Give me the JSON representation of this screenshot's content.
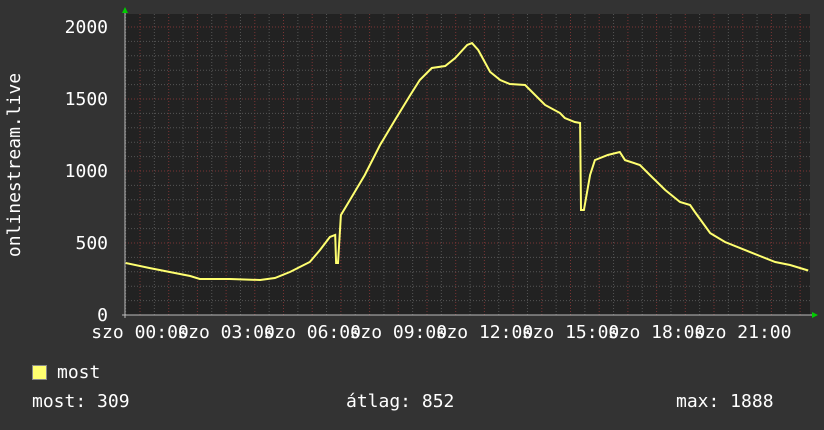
{
  "chart_data": {
    "type": "line",
    "ylabel": "onlinestream.live",
    "ylim": [
      0,
      2000
    ],
    "yticks": [
      "0",
      "500",
      "1000",
      "1500",
      "2000"
    ],
    "xticks": [
      "szo 00:00",
      "szo 03:00",
      "szo 06:00",
      "szo 09:00",
      "szo 12:00",
      "szo 15:00",
      "szo 18:00",
      "szo 21:00"
    ],
    "xlim": [
      "23:28",
      "23:52"
    ],
    "grid": true,
    "colors": {
      "background": "#333333",
      "plot": "#222222",
      "line": "#ffff70",
      "minor_grid": "#555555",
      "major_grid": "#7a3434",
      "arrows": "#00cc00"
    },
    "series": [
      {
        "name": "most",
        "x": [
          "23:30",
          "00:21",
          "01:13",
          "01:45",
          "02:05",
          "03:08",
          "04:11",
          "04:42",
          "05:14",
          "05:34",
          "05:55",
          "06:16",
          "06:37",
          "06:48",
          "06:50",
          "06:54",
          "07:00",
          "07:19",
          "07:50",
          "08:22",
          "08:53",
          "09:25",
          "09:45",
          "10:10",
          "10:38",
          "10:59",
          "11:24",
          "11:34",
          "11:47",
          "12:12",
          "12:33",
          "12:53",
          "13:25",
          "13:46",
          "14:07",
          "14:38",
          "14:48",
          "15:09",
          "15:20",
          "15:22",
          "15:28",
          "15:41",
          "15:51",
          "16:18",
          "16:43",
          "16:54",
          "17:25",
          "17:46",
          "18:18",
          "18:49",
          "19:10",
          "19:20",
          "19:52",
          "20:23",
          "21:05",
          "21:36",
          "22:08",
          "22:39",
          "23:17"
        ],
        "values": [
          361,
          326,
          292,
          271,
          250,
          250,
          243,
          257,
          299,
          333,
          368,
          451,
          542,
          556,
          361,
          361,
          694,
          799,
          972,
          1181,
          1354,
          1528,
          1632,
          1715,
          1729,
          1785,
          1875,
          1888,
          1840,
          1688,
          1632,
          1604,
          1597,
          1528,
          1458,
          1403,
          1368,
          1340,
          1333,
          729,
          729,
          972,
          1076,
          1111,
          1132,
          1076,
          1042,
          972,
          868,
          785,
          764,
          715,
          569,
          507,
          451,
          410,
          368,
          347,
          309
        ]
      }
    ]
  },
  "legend": {
    "label": "most"
  },
  "stats": {
    "current": "most: 309",
    "average": "átlag: 852",
    "max": "max: 1888"
  }
}
